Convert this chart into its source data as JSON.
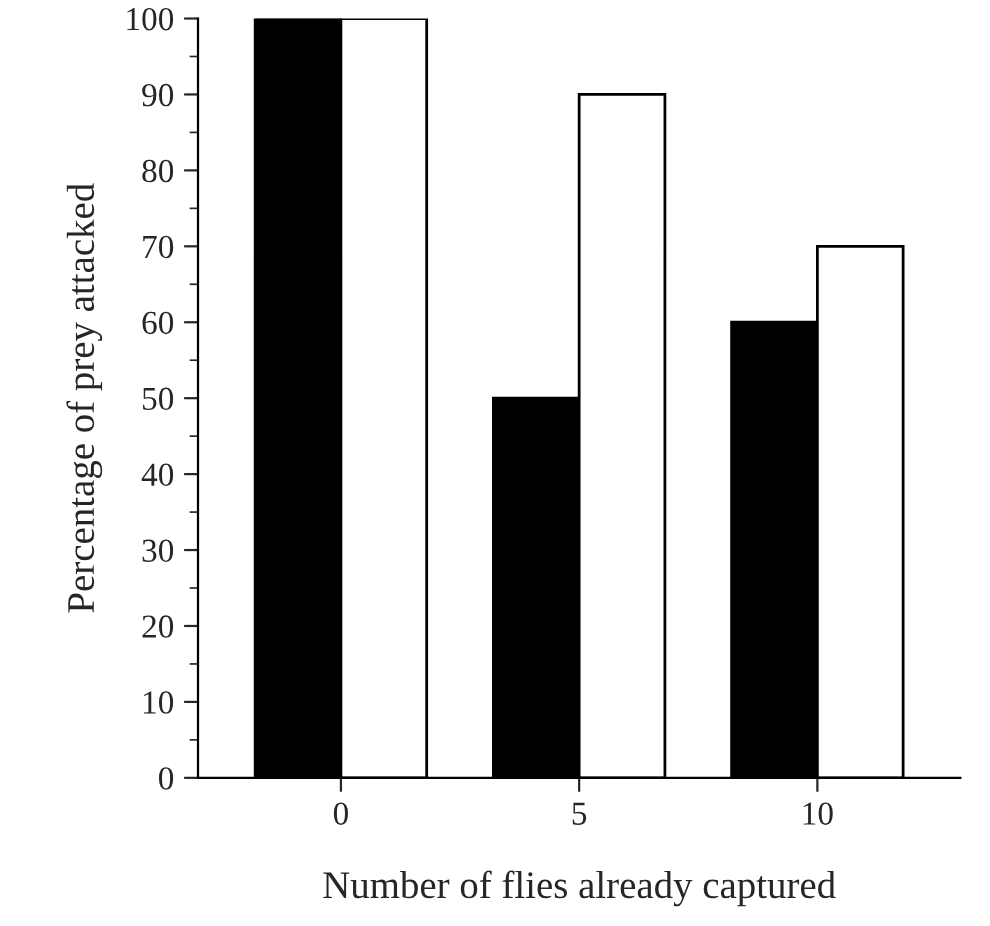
{
  "chart_data": {
    "type": "bar",
    "xlabel": "Number of flies already captured",
    "ylabel": "Percentage of prey attacked",
    "categories": [
      "0",
      "5",
      "10"
    ],
    "series": [
      {
        "color": "#000000",
        "values": [
          100,
          50,
          60
        ]
      },
      {
        "color": "#ffffff",
        "values": [
          100,
          90,
          70
        ]
      }
    ],
    "ylim": [
      0,
      100
    ],
    "yticks": [
      0,
      {
        "value": 5,
        "label": null
      },
      10,
      {
        "value": 15,
        "label": null
      },
      20,
      {
        "value": 25,
        "label": null
      },
      30,
      {
        "value": 35,
        "label": null
      },
      40,
      {
        "value": 45,
        "label": null
      },
      50,
      {
        "value": 55,
        "label": null
      },
      60,
      {
        "value": 65,
        "label": null
      },
      70,
      {
        "value": 75,
        "label": null
      },
      80,
      {
        "value": 85,
        "label": null
      },
      90,
      {
        "value": 95,
        "label": null
      },
      100
    ],
    "grid": false,
    "legend": false
  }
}
